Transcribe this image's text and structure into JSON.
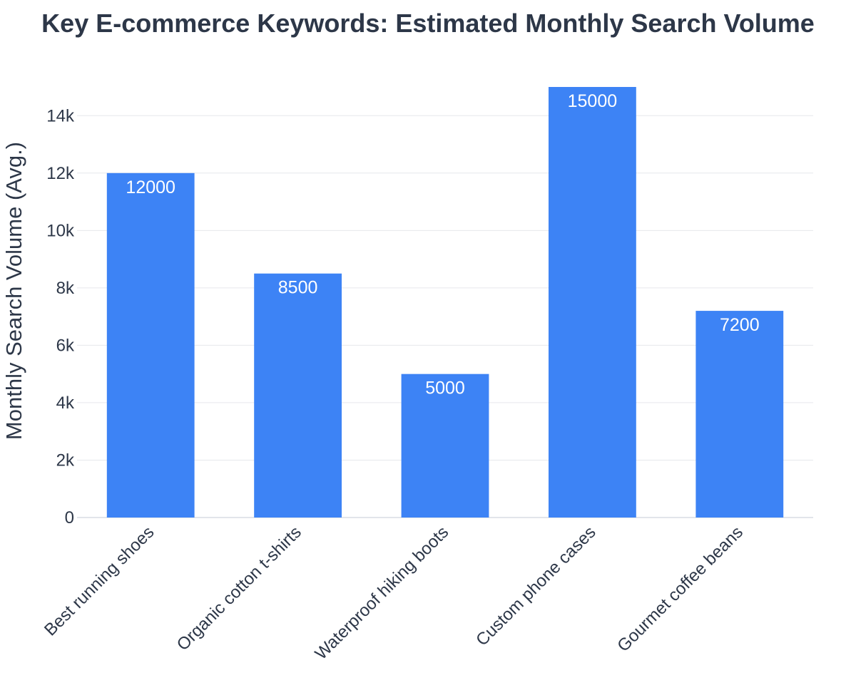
{
  "chart_data": {
    "type": "bar",
    "title": "Key E-commerce Keywords: Estimated Monthly Search Volume",
    "xlabel": "",
    "ylabel": "Monthly Search Volume (Avg.)",
    "categories": [
      "Best running shoes",
      "Organic cotton t-shirts",
      "Waterproof hiking boots",
      "Custom phone cases",
      "Gourmet coffee beans"
    ],
    "values": [
      12000,
      8500,
      5000,
      15000,
      7200
    ],
    "data_labels": [
      "12000",
      "8500",
      "5000",
      "15000",
      "7200"
    ],
    "ylim": [
      0,
      15000
    ],
    "yticks": [
      0,
      2000,
      4000,
      6000,
      8000,
      10000,
      12000,
      14000
    ],
    "ytick_labels": [
      "0",
      "2k",
      "4k",
      "6k",
      "8k",
      "10k",
      "12k",
      "14k"
    ],
    "grid": true,
    "legend": "none",
    "colors": {
      "bar": "#3d83f5",
      "text": "#2d3748",
      "data_label": "#ffffff",
      "grid": "#e6e8ec"
    }
  }
}
